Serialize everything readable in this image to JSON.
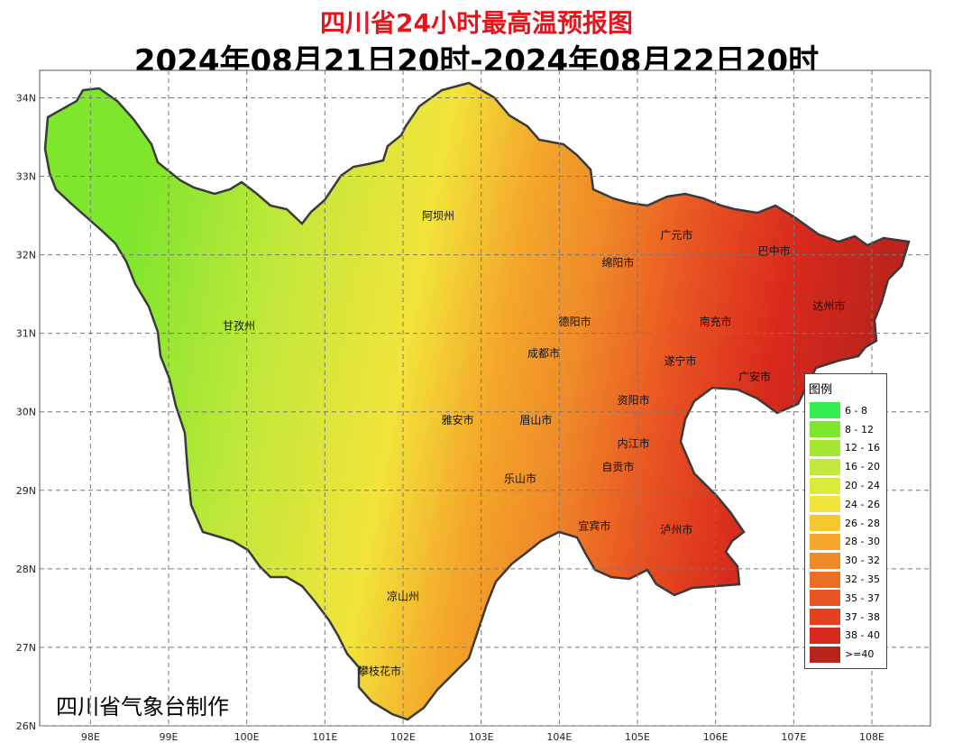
{
  "title": "四川省24小时最高温预报图",
  "subtitle": "2024年08月21日20时-2024年08月22日20时",
  "credit": "四川省气象台制作",
  "lon_ticks": [
    "98E",
    "99E",
    "100E",
    "101E",
    "102E",
    "103E",
    "104E",
    "105E",
    "106E",
    "107E",
    "108E"
  ],
  "lat_ticks": [
    "34N",
    "33N",
    "32N",
    "31N",
    "30N",
    "29N",
    "28N",
    "27N",
    "26N"
  ],
  "map_extent": {
    "lon": [
      97.35,
      108.75
    ],
    "lat": [
      26.0,
      34.35
    ]
  },
  "legend": {
    "title": "图例",
    "items": [
      {
        "label": "6 - 8",
        "color": "#33ee4e"
      },
      {
        "label": "8 - 12",
        "color": "#7ee62c"
      },
      {
        "label": "12 - 16",
        "color": "#a3e630"
      },
      {
        "label": "16 - 20",
        "color": "#c2e83a"
      },
      {
        "label": "20 - 24",
        "color": "#dcea3a"
      },
      {
        "label": "24 - 26",
        "color": "#f2e43a"
      },
      {
        "label": "26 - 28",
        "color": "#f7c72e"
      },
      {
        "label": "28 - 30",
        "color": "#f4a72a"
      },
      {
        "label": "30 - 32",
        "color": "#ef8a28"
      },
      {
        "label": "32 - 35",
        "color": "#ec7024"
      },
      {
        "label": "35 - 37",
        "color": "#e95522"
      },
      {
        "label": "37 - 38",
        "color": "#e5401f"
      },
      {
        "label": "38 - 40",
        "color": "#d82a1c"
      },
      {
        "label": ">=40",
        "color": "#b8231c"
      }
    ]
  },
  "cities": [
    {
      "name": "阿坝州",
      "lon": 102.45,
      "lat": 32.45
    },
    {
      "name": "甘孜州",
      "lon": 99.9,
      "lat": 31.05
    },
    {
      "name": "广元市",
      "lon": 105.5,
      "lat": 32.2
    },
    {
      "name": "巴中市",
      "lon": 106.75,
      "lat": 32.0
    },
    {
      "name": "绵阳市",
      "lon": 104.75,
      "lat": 31.85
    },
    {
      "name": "达州市",
      "lon": 107.45,
      "lat": 31.3
    },
    {
      "name": "南充市",
      "lon": 106.0,
      "lat": 31.1
    },
    {
      "name": "德阳市",
      "lon": 104.2,
      "lat": 31.1
    },
    {
      "name": "遂宁市",
      "lon": 105.55,
      "lat": 30.6
    },
    {
      "name": "成都市",
      "lon": 103.8,
      "lat": 30.7
    },
    {
      "name": "广安市",
      "lon": 106.5,
      "lat": 30.4
    },
    {
      "name": "资阳市",
      "lon": 104.95,
      "lat": 30.1
    },
    {
      "name": "雅安市",
      "lon": 102.7,
      "lat": 29.85
    },
    {
      "name": "眉山市",
      "lon": 103.7,
      "lat": 29.85
    },
    {
      "name": "内江市",
      "lon": 104.95,
      "lat": 29.55
    },
    {
      "name": "自贡市",
      "lon": 104.75,
      "lat": 29.25
    },
    {
      "name": "乐山市",
      "lon": 103.5,
      "lat": 29.1
    },
    {
      "name": "宜宾市",
      "lon": 104.45,
      "lat": 28.5
    },
    {
      "name": "泸州市",
      "lon": 105.5,
      "lat": 28.45
    },
    {
      "name": "凉山州",
      "lon": 102.0,
      "lat": 27.6
    },
    {
      "name": "攀枝花市",
      "lon": 101.7,
      "lat": 26.65
    }
  ]
}
